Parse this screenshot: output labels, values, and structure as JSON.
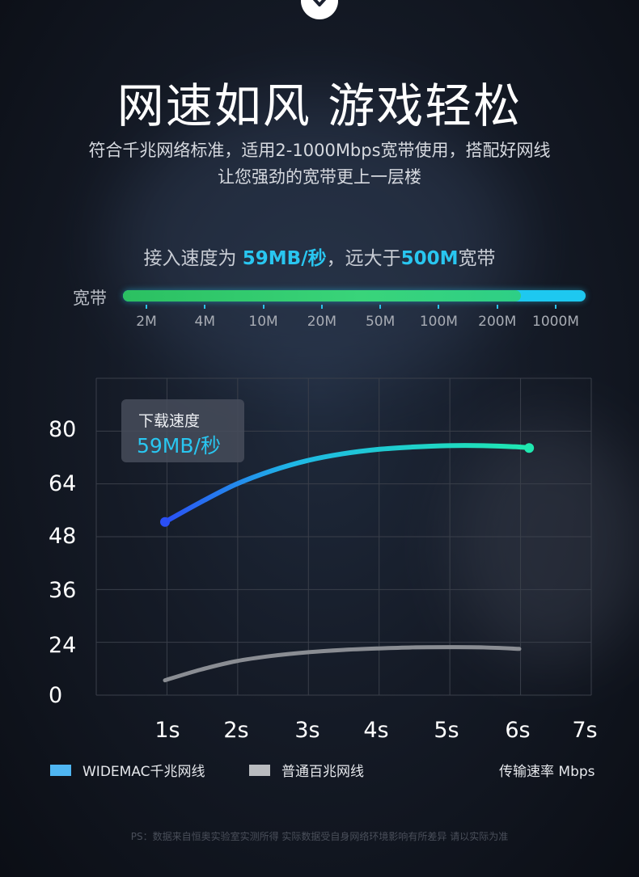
{
  "header": {
    "title": "网速如风 游戏轻松",
    "subtitle_line1": "符合千兆网络标准，适用2-1000Mbps宽带使用，搭配好网线",
    "subtitle_line2": "让您强劲的宽带更上一层楼"
  },
  "speed_line": {
    "prefix": "接入速度为 ",
    "speed": "59MB/秒",
    "middle": "，远大于",
    "bandwidth": "500M",
    "suffix": "宽带"
  },
  "bandwidth_scale": {
    "label": "宽带",
    "ticks": [
      "2M",
      "4M",
      "10M",
      "20M",
      "50M",
      "100M",
      "200M",
      "1000M"
    ],
    "green_fill_fraction": 0.86
  },
  "chart_data": {
    "type": "line",
    "ylim": [
      0,
      80
    ],
    "y_ticks": [
      "80",
      "64",
      "48",
      "36",
      "24",
      "0"
    ],
    "x_ticks": [
      "1s",
      "2s",
      "3s",
      "4s",
      "5s",
      "6s",
      "7s"
    ],
    "series": [
      {
        "name": "WIDEMAC千兆网线",
        "color": "#2a5cf5",
        "color_end": "#1fe7b6",
        "x": [
          1,
          1.5,
          2,
          2.5,
          3,
          3.5,
          4,
          4.5,
          5,
          5.5,
          6,
          6.15
        ],
        "y": [
          52,
          58,
          63.5,
          67.5,
          70.5,
          72.5,
          73.8,
          74.5,
          74.9,
          74.9,
          74.5,
          74.2
        ]
      },
      {
        "name": "普通百兆网线",
        "color": "#8a8d93",
        "x": [
          1,
          1.5,
          2,
          2.5,
          3,
          3.5,
          4,
          4.5,
          5,
          5.5,
          6
        ],
        "y": [
          7,
          12,
          16,
          18.5,
          20.2,
          21.3,
          22,
          22.5,
          22.6,
          22.5,
          21.8
        ]
      }
    ],
    "callout": {
      "title": "下载速度",
      "value": "59MB/秒"
    },
    "unit_label": "传输速率 Mbps"
  },
  "footnote": "PS：数据来自恒奥实验室实测所得 实际数据受自身网络环境影响有所差异 请以实际为准"
}
